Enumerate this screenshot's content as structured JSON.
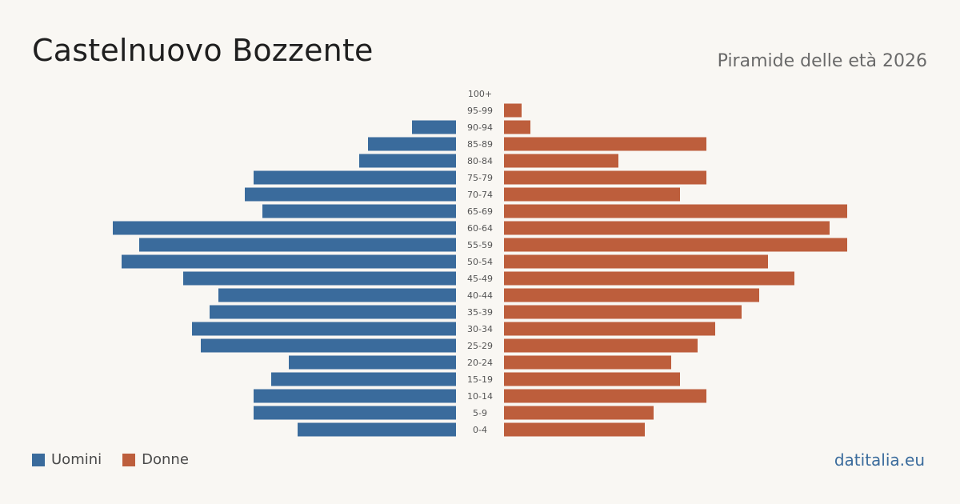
{
  "header": {
    "title": "Castelnuovo Bozzente",
    "subtitle": "Piramide delle età 2026"
  },
  "legend": {
    "men_label": "Uomini",
    "women_label": "Donne"
  },
  "footer": {
    "source": "datitalia.eu"
  },
  "colors": {
    "men": "#3a6b9c",
    "women": "#bd5e3c",
    "age_label": "#555555",
    "source": "#3a6b9c"
  },
  "chart_data": {
    "type": "bar",
    "orientation": "horizontal-mirrored",
    "title": "Castelnuovo Bozzente",
    "subtitle": "Piramide delle età 2026",
    "categories": [
      "100+",
      "95-99",
      "90-94",
      "85-89",
      "80-84",
      "75-79",
      "70-74",
      "65-69",
      "60-64",
      "55-59",
      "50-54",
      "45-49",
      "40-44",
      "35-39",
      "30-34",
      "25-29",
      "20-24",
      "15-19",
      "10-14",
      "5-9",
      "0-4"
    ],
    "series": [
      {
        "name": "Uomini",
        "values": [
          0,
          0,
          5,
          10,
          11,
          23,
          24,
          22,
          39,
          36,
          38,
          31,
          27,
          28,
          30,
          29,
          19,
          21,
          23,
          23,
          18
        ]
      },
      {
        "name": "Donne",
        "values": [
          0,
          2,
          3,
          23,
          13,
          23,
          20,
          39,
          37,
          39,
          30,
          33,
          29,
          27,
          24,
          22,
          19,
          20,
          23,
          17,
          16
        ]
      }
    ],
    "grid": false,
    "legend_position": "bottom-left"
  }
}
